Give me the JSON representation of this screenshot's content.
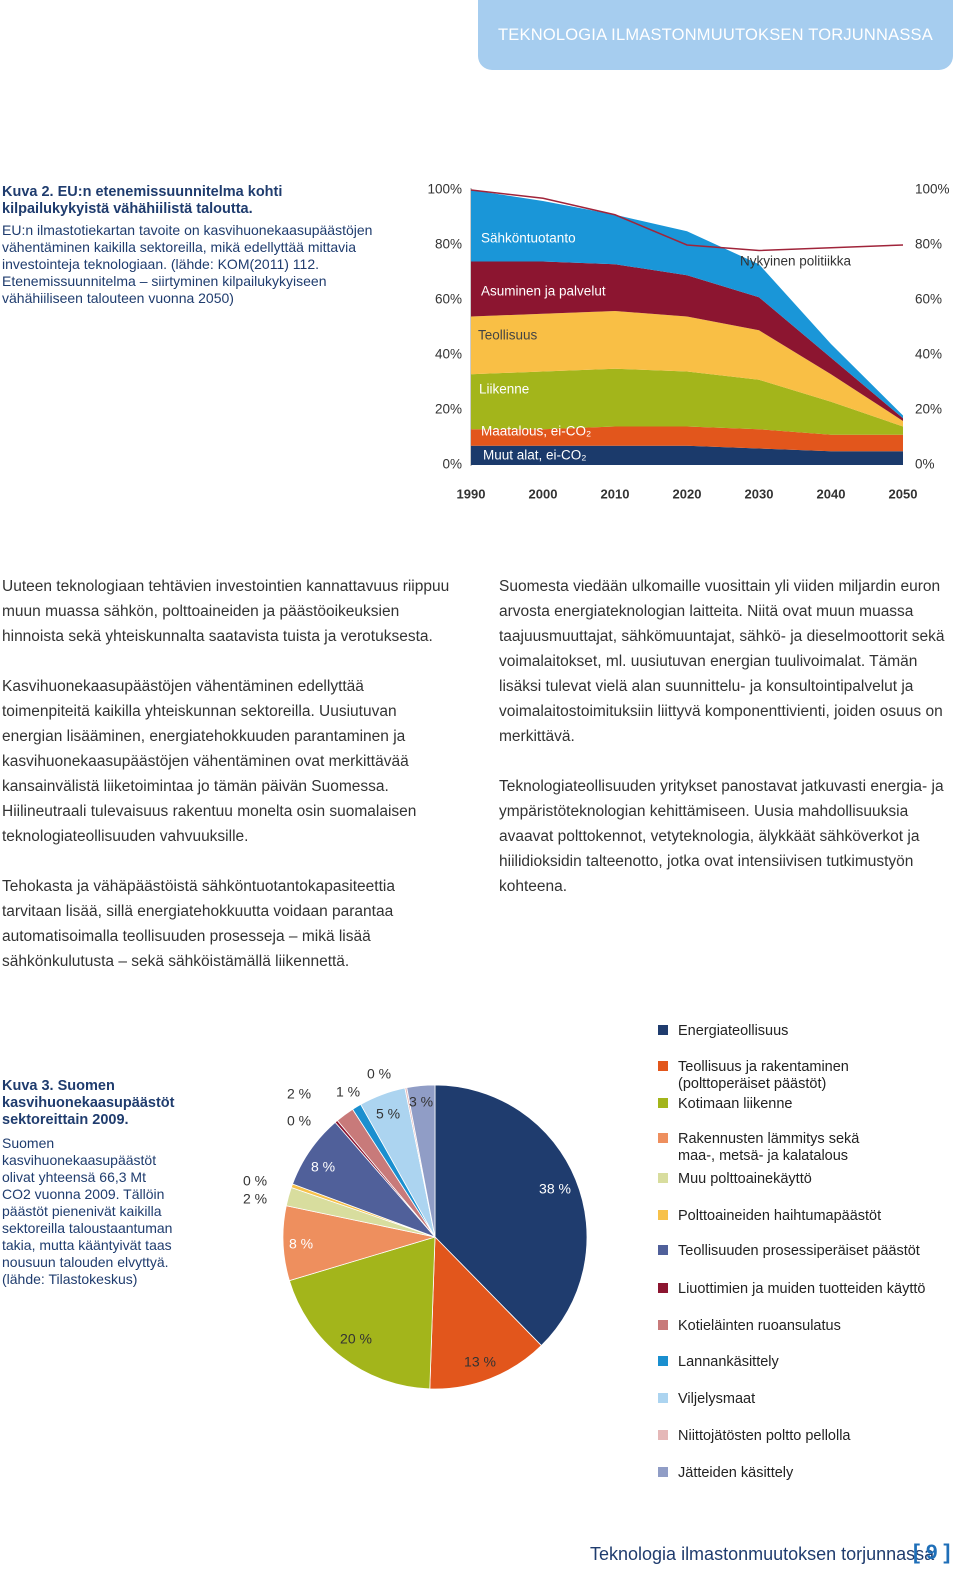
{
  "header": {
    "tab": "TEKNOLOGIA ILMASTONMUUTOKSEN TORJUNNASSA"
  },
  "chart_data": [
    {
      "type": "area",
      "title": "Kuva 2. EU:n etenemissuunnitelma kohti kilpailukykyistä vähähiilistä taloutta.",
      "caption": "EU:n ilmastotiekartan tavoite on kasvihuonekaasupäästöjen vähentäminen kaikilla sektoreilla, mikä edellyttää mittavia investointeja teknologiaan. (lähde: KOM(2011) 112. Etenemissuunnitelma – siirtyminen kilpailukykyiseen vähähiiliseen talouteen vuonna 2050)",
      "x": [
        1990,
        2000,
        2010,
        2020,
        2030,
        2040,
        2050
      ],
      "xlim": [
        1990,
        2050
      ],
      "xticks": [
        1990,
        2000,
        2010,
        2020,
        2030,
        2040,
        2050
      ],
      "ylim": [
        0,
        100
      ],
      "yticks": [
        {
          "value": 0,
          "label": "0%"
        },
        {
          "value": 20,
          "label": "20%"
        },
        {
          "value": 40,
          "label": "40%"
        },
        {
          "value": 60,
          "label": "60%"
        },
        {
          "value": 80,
          "label": "80%"
        },
        {
          "value": 100,
          "label": "100%"
        }
      ],
      "stacked": true,
      "series": [
        {
          "name": "Muut alat, ei-CO₂",
          "color": "#1b3a6b",
          "values": [
            7,
            7,
            7,
            7,
            6,
            5,
            5
          ]
        },
        {
          "name": "Maatalous, ei-CO₂",
          "color": "#e2561c",
          "values": [
            6,
            6,
            7,
            7,
            7,
            6,
            6
          ]
        },
        {
          "name": "Liikenne",
          "color": "#a3b51b",
          "values": [
            20,
            21,
            21,
            20,
            18,
            12,
            3
          ]
        },
        {
          "name": "Teollisuus",
          "color": "#f9bf45",
          "values": [
            21,
            21,
            21,
            20,
            18,
            10,
            2
          ]
        },
        {
          "name": "Asuminen ja palvelut",
          "color": "#8c1530",
          "values": [
            20,
            19,
            17,
            15,
            12,
            6,
            1
          ]
        },
        {
          "name": "Sähköntuotanto",
          "color": "#1a96d8",
          "values": [
            26,
            22,
            18,
            16,
            12,
            5,
            1
          ]
        }
      ],
      "reference_line": {
        "name": "Nykyinen politiikka",
        "color": "#a0243a",
        "values": [
          100,
          97,
          91,
          80,
          78,
          79,
          80
        ]
      }
    },
    {
      "type": "pie",
      "title": "Kuva 3. Suomen kasvihuonekaasupäästöt sektoreittain 2009.",
      "caption": "Suomen kasvihuonekaasupäästöt olivat yhteensä 66,3 Mt CO2 vuonna 2009. Tällöin päästöt pienenivät kaikilla sektoreilla taloustaantuman takia, mutta kääntyivät taas nousuun talouden elvyttyä. (lähde: Tilastokeskus)",
      "categories": [
        "Energiateollisuus",
        "Teollisuus ja rakentaminen (polttoperäiset päästöt)",
        "Kotimaan liikenne",
        "Rakennusten lämmitys sekä maa-, metsä- ja kalatalous",
        "Muu polttoainekäyttö",
        "Polttoaineiden haihtumapäästöt",
        "Teollisuuden prosessiperäiset päästöt",
        "Liuottimien ja muiden tuotteiden käyttö",
        "Kotieläinten ruoansulatus",
        "Lannankäsittely",
        "Viljelysmaat",
        "Niittojätösten poltto pellolla",
        "Jätteiden käsittely"
      ],
      "values": [
        38,
        13,
        20,
        8,
        2,
        0.4,
        8,
        0.3,
        2,
        1,
        5,
        0.2,
        3
      ],
      "value_labels": [
        "38 %",
        "13 %",
        "20 %",
        "8 %",
        "2 %",
        "0 %",
        "8 %",
        "0 %",
        "2 %",
        "1 %",
        "5 %",
        "0 %",
        "3 %"
      ],
      "colors": [
        "#1f3c6e",
        "#e2561c",
        "#a3b51b",
        "#ee8f5e",
        "#d8dd9e",
        "#f7c14a",
        "#50609a",
        "#8c1530",
        "#c87a7a",
        "#1a8fcf",
        "#acd4f0",
        "#e5b8b8",
        "#909dc6"
      ]
    }
  ],
  "body": {
    "column_1": [
      "Uuteen teknologiaan tehtävien investointien kannattavuus riippuu muun muassa sähkön, polttoaineiden ja päästöoikeuksien hinnoista sekä yhteiskunnalta saatavista tuista ja verotuksesta.",
      "Kasvihuonekaasupäästöjen vähentäminen edellyttää toimenpiteitä kaikilla yhteiskunnan sektoreilla. Uusiutuvan energian lisääminen, energiatehokkuuden parantaminen ja kasvihuonekaasupäästöjen vähentäminen ovat merkittävää kansainvälistä liiketoimintaa jo tämän päivän Suomessa. Hiilineutraali tulevaisuus rakentuu monelta osin suomalaisen teknologiateollisuuden vahvuuksille.",
      "Tehokasta ja vähäpäästöistä sähköntuotantokapasiteettia tarvitaan lisää, sillä energiatehokkuutta voidaan parantaa automatisoimalla teollisuuden prosesseja – mikä lisää sähkönkulutusta – sekä sähköistämällä liikennettä."
    ],
    "column_2": [
      "Suomesta viedään ulkomaille vuosittain yli viiden miljardin euron arvosta energiateknologian laitteita. Niitä ovat muun muassa taajuusmuuttajat, sähkömuuntajat, sähkö- ja dieselmoottorit sekä voimalaitokset, ml. uusiutuvan energian tuulivoimalat. Tämän lisäksi tulevat vielä alan suunnittelu- ja konsultointipalvelut ja voimalaitostoimituksiin liittyvä komponenttivienti, joiden osuus on merkittävä.",
      "Teknologiateollisuuden yritykset panostavat jatkuvasti energia- ja ympäristöteknologian kehittämiseen. Uusia mahdollisuuksia avaavat polttokennot, vetyteknologia, älykkäät sähköverkot ja hiilidioksidin talteenotto, jotka ovat intensiivisen tutkimustyön kohteena."
    ]
  },
  "footer": {
    "text": "Teknologia ilmastonmuutoksen torjunnassa",
    "page": "[ 9 ]"
  }
}
